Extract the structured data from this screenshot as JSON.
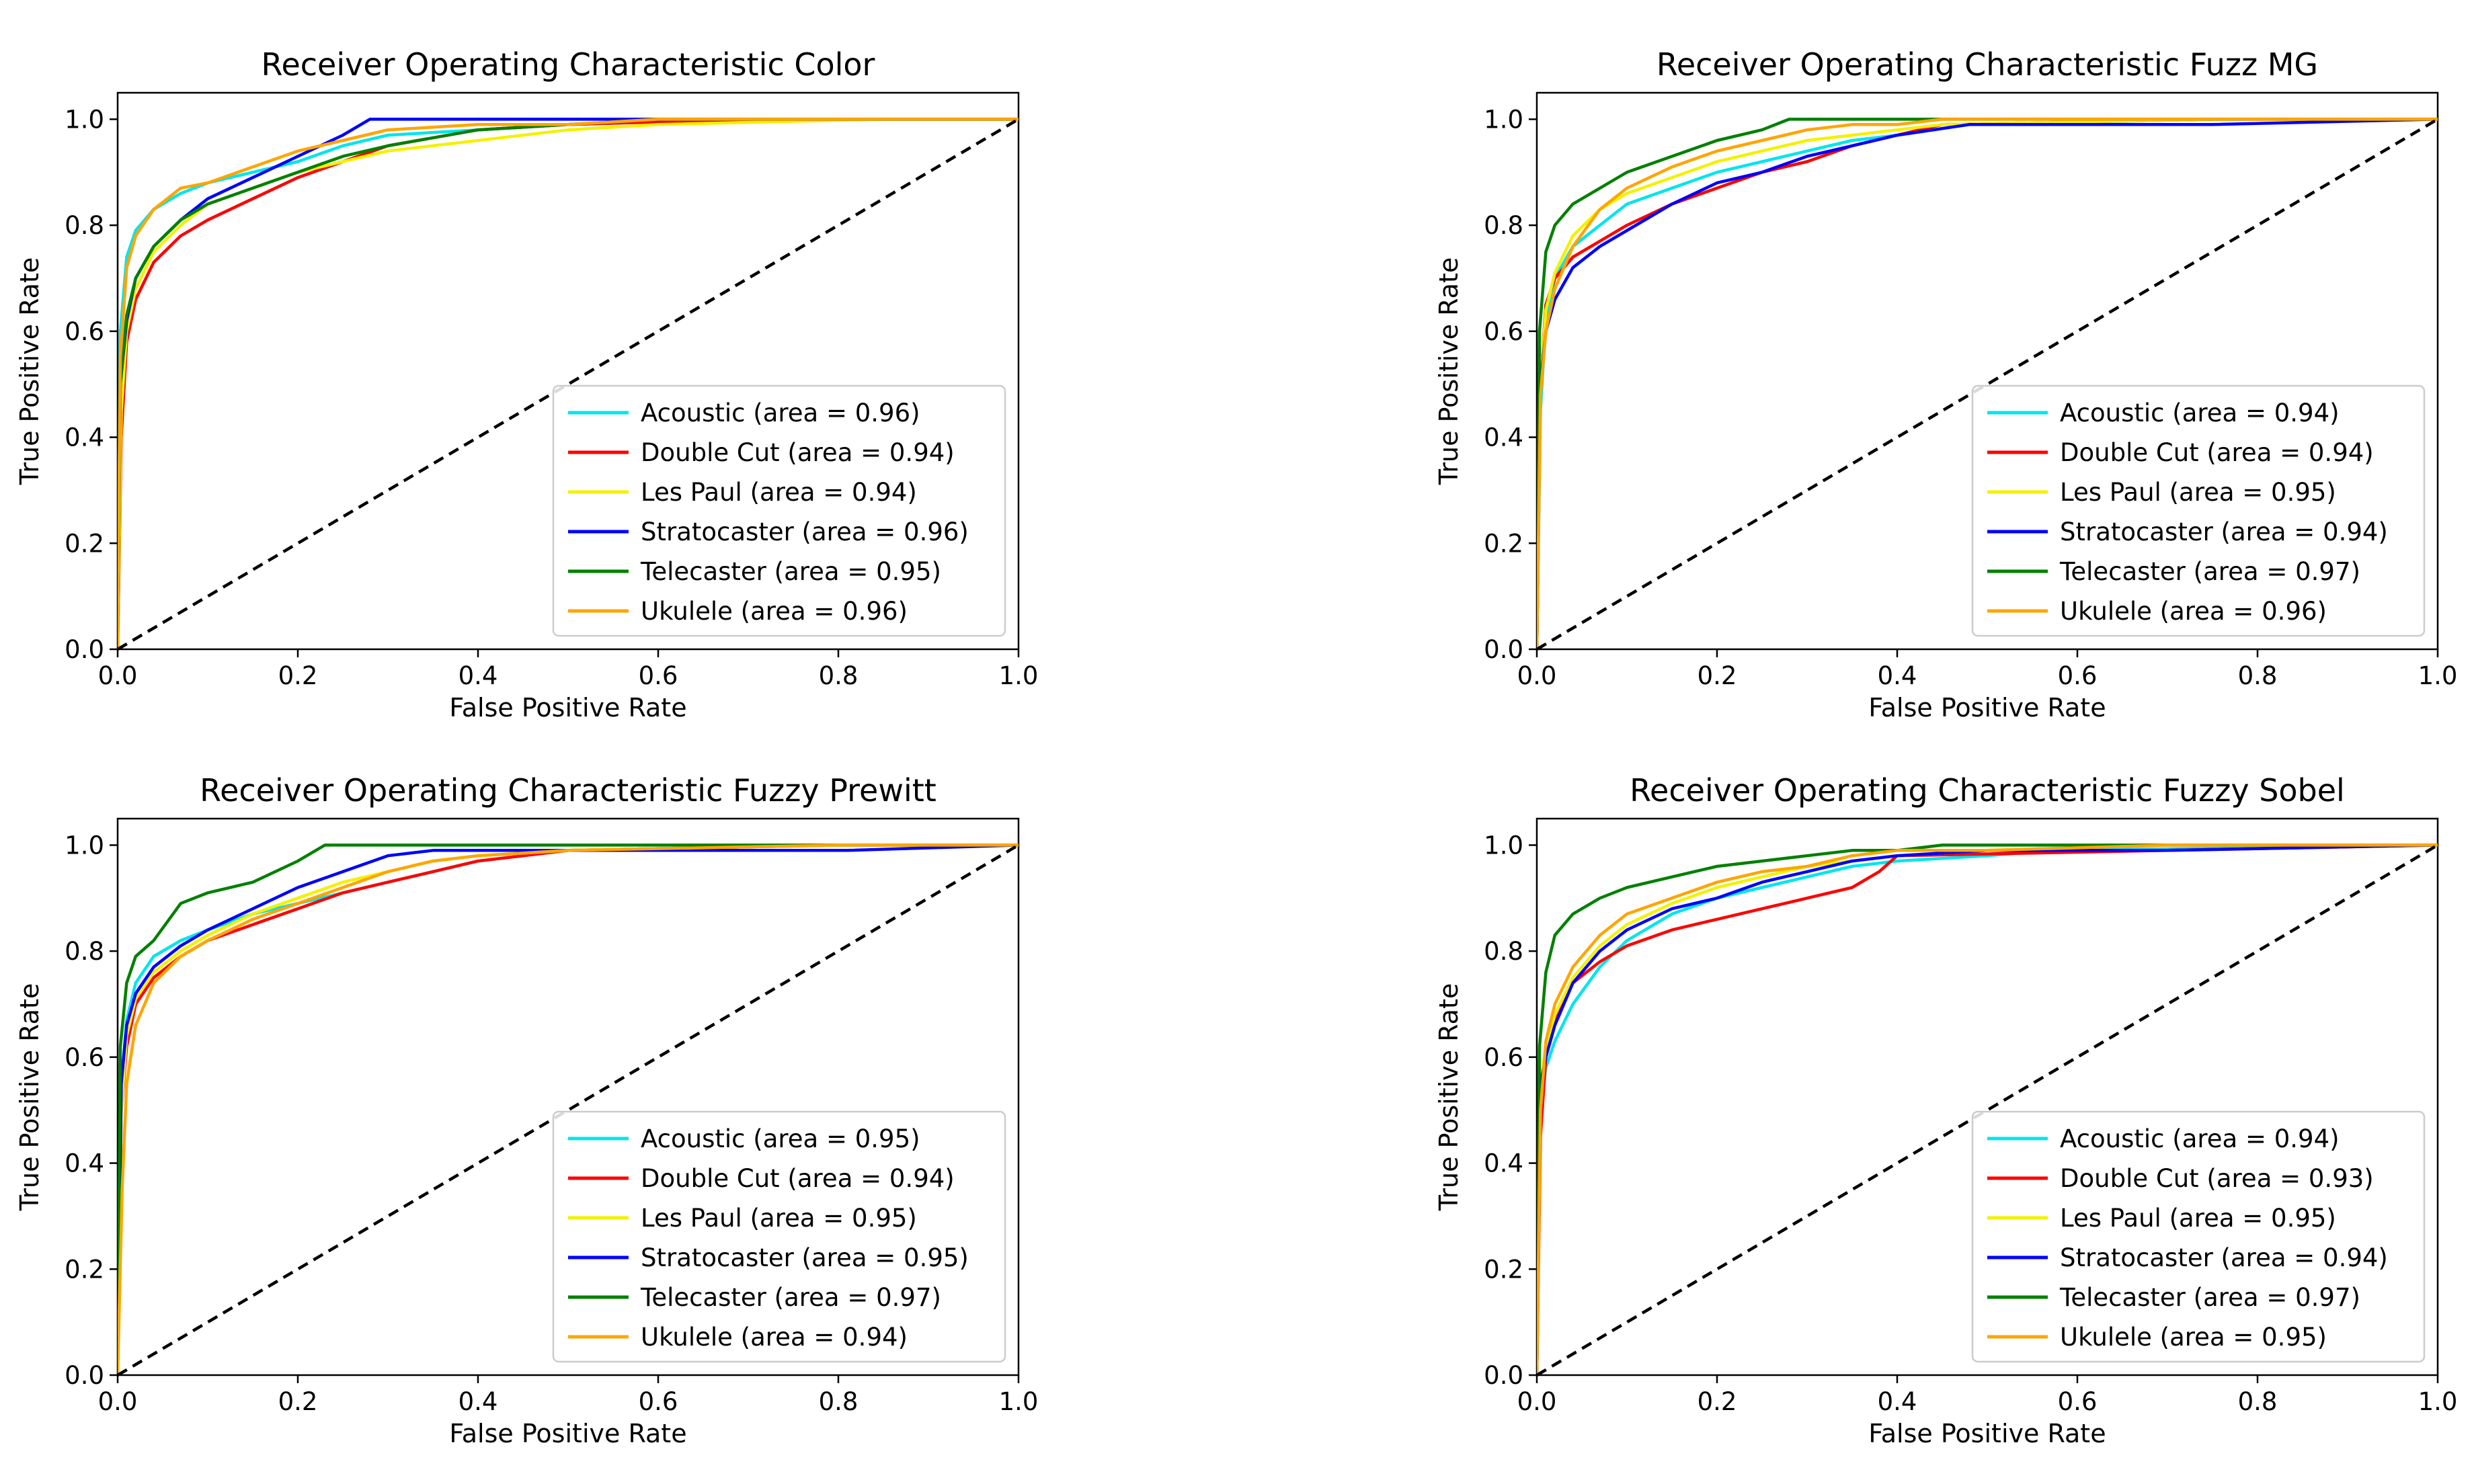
{
  "figure": {
    "description_title": "ROC curves for six guitar classes under four feature extractors"
  },
  "colors": {
    "Acoustic": "#00e5ee",
    "Double Cut": "#ff0000",
    "Les Paul": "#f2f200",
    "Stratocaster": "#0000ff",
    "Telecaster": "#008000",
    "Ukulele": "#ffa500",
    "diagonal": "#000000"
  },
  "chart_data": [
    {
      "type": "line",
      "title": "Receiver Operating Characteristic Color",
      "xlabel": "False Positive Rate",
      "ylabel": "True Positive Rate",
      "xlim": [
        0,
        1
      ],
      "ylim": [
        0,
        1.05
      ],
      "xticks": [
        "0.0",
        "0.2",
        "0.4",
        "0.6",
        "0.8",
        "1.0"
      ],
      "yticks": [
        "0.0",
        "0.2",
        "0.4",
        "0.6",
        "0.8",
        "1.0"
      ],
      "legend_position": "lower-right",
      "series": [
        {
          "name": "Acoustic",
          "label": "Acoustic (area = 0.96)",
          "x": [
            0,
            0.003,
            0.01,
            0.02,
            0.04,
            0.07,
            0.1,
            0.15,
            0.2,
            0.25,
            0.3,
            0.4,
            0.5,
            0.6,
            0.85,
            1.0
          ],
          "y": [
            0,
            0.6,
            0.74,
            0.79,
            0.83,
            0.86,
            0.88,
            0.9,
            0.92,
            0.95,
            0.97,
            0.98,
            0.99,
            0.995,
            1.0,
            1.0
          ]
        },
        {
          "name": "Double Cut",
          "label": "Double Cut (area = 0.94)",
          "x": [
            0,
            0.004,
            0.01,
            0.02,
            0.04,
            0.07,
            0.1,
            0.15,
            0.2,
            0.25,
            0.3,
            0.4,
            0.5,
            0.6,
            0.85,
            1.0
          ],
          "y": [
            0,
            0.4,
            0.58,
            0.66,
            0.73,
            0.78,
            0.81,
            0.85,
            0.89,
            0.92,
            0.95,
            0.98,
            0.99,
            0.995,
            1.0,
            1.0
          ]
        },
        {
          "name": "Les Paul",
          "label": "Les Paul (area = 0.94)",
          "x": [
            0,
            0.004,
            0.01,
            0.02,
            0.04,
            0.07,
            0.1,
            0.15,
            0.2,
            0.25,
            0.3,
            0.4,
            0.5,
            0.6,
            0.85,
            1.0
          ],
          "y": [
            0,
            0.45,
            0.6,
            0.68,
            0.75,
            0.8,
            0.84,
            0.87,
            0.9,
            0.92,
            0.94,
            0.96,
            0.98,
            0.99,
            1.0,
            1.0
          ]
        },
        {
          "name": "Stratocaster",
          "label": "Stratocaster (area = 0.96)",
          "x": [
            0,
            0.003,
            0.01,
            0.02,
            0.04,
            0.07,
            0.1,
            0.15,
            0.2,
            0.25,
            0.28,
            0.35,
            0.45,
            0.6,
            0.85,
            1.0
          ],
          "y": [
            0,
            0.5,
            0.62,
            0.7,
            0.76,
            0.81,
            0.85,
            0.89,
            0.93,
            0.97,
            1.0,
            1.0,
            1.0,
            1.0,
            1.0,
            1.0
          ]
        },
        {
          "name": "Telecaster",
          "label": "Telecaster (area = 0.95)",
          "x": [
            0,
            0.003,
            0.01,
            0.02,
            0.04,
            0.07,
            0.1,
            0.15,
            0.2,
            0.25,
            0.3,
            0.4,
            0.5,
            0.6,
            0.85,
            1.0
          ],
          "y": [
            0,
            0.5,
            0.63,
            0.7,
            0.76,
            0.81,
            0.84,
            0.87,
            0.9,
            0.93,
            0.95,
            0.98,
            0.99,
            1.0,
            1.0,
            1.0
          ]
        },
        {
          "name": "Ukulele",
          "label": "Ukulele (area = 0.96)",
          "x": [
            0,
            0.003,
            0.01,
            0.02,
            0.04,
            0.07,
            0.1,
            0.15,
            0.2,
            0.25,
            0.3,
            0.4,
            0.5,
            0.6,
            0.85,
            1.0
          ],
          "y": [
            0,
            0.55,
            0.72,
            0.78,
            0.83,
            0.87,
            0.88,
            0.91,
            0.94,
            0.96,
            0.98,
            0.99,
            0.99,
            1.0,
            1.0,
            1.0
          ]
        }
      ]
    },
    {
      "type": "line",
      "title": "Receiver Operating Characteristic Fuzz MG",
      "xlabel": "False Positive Rate",
      "ylabel": "True Positive Rate",
      "xlim": [
        0,
        1
      ],
      "ylim": [
        0,
        1.05
      ],
      "xticks": [
        "0.0",
        "0.2",
        "0.4",
        "0.6",
        "0.8",
        "1.0"
      ],
      "yticks": [
        "0.0",
        "0.2",
        "0.4",
        "0.6",
        "0.8",
        "1.0"
      ],
      "legend_position": "lower-right",
      "series": [
        {
          "name": "Acoustic",
          "label": "Acoustic (area = 0.94)",
          "x": [
            0,
            0.004,
            0.01,
            0.02,
            0.04,
            0.07,
            0.1,
            0.15,
            0.2,
            0.25,
            0.3,
            0.35,
            0.4,
            0.48,
            0.75,
            1.0
          ],
          "y": [
            0,
            0.45,
            0.62,
            0.7,
            0.76,
            0.8,
            0.84,
            0.87,
            0.9,
            0.92,
            0.94,
            0.96,
            0.97,
            0.99,
            1.0,
            1.0
          ]
        },
        {
          "name": "Double Cut",
          "label": "Double Cut (area = 0.94)",
          "x": [
            0,
            0.004,
            0.01,
            0.02,
            0.04,
            0.07,
            0.1,
            0.15,
            0.2,
            0.25,
            0.3,
            0.35,
            0.4,
            0.45,
            0.75,
            1.0
          ],
          "y": [
            0,
            0.5,
            0.65,
            0.7,
            0.74,
            0.77,
            0.8,
            0.84,
            0.87,
            0.9,
            0.92,
            0.95,
            0.97,
            0.99,
            1.0,
            1.0
          ]
        },
        {
          "name": "Les Paul",
          "label": "Les Paul (area = 0.95)",
          "x": [
            0,
            0.004,
            0.01,
            0.02,
            0.04,
            0.07,
            0.1,
            0.15,
            0.2,
            0.25,
            0.3,
            0.35,
            0.4,
            0.45,
            0.75,
            1.0
          ],
          "y": [
            0,
            0.5,
            0.64,
            0.71,
            0.78,
            0.83,
            0.86,
            0.89,
            0.92,
            0.94,
            0.96,
            0.97,
            0.98,
            0.99,
            1.0,
            1.0
          ]
        },
        {
          "name": "Stratocaster",
          "label": "Stratocaster (area = 0.94)",
          "x": [
            0,
            0.004,
            0.01,
            0.02,
            0.04,
            0.07,
            0.1,
            0.15,
            0.2,
            0.25,
            0.3,
            0.35,
            0.4,
            0.48,
            0.75,
            1.0
          ],
          "y": [
            0,
            0.5,
            0.6,
            0.66,
            0.72,
            0.76,
            0.79,
            0.84,
            0.88,
            0.9,
            0.93,
            0.95,
            0.97,
            0.99,
            0.99,
            1.0
          ]
        },
        {
          "name": "Telecaster",
          "label": "Telecaster (area = 0.97)",
          "x": [
            0,
            0.003,
            0.01,
            0.02,
            0.04,
            0.07,
            0.1,
            0.15,
            0.2,
            0.25,
            0.28,
            0.35,
            0.45,
            0.6,
            0.75,
            1.0
          ],
          "y": [
            0,
            0.6,
            0.75,
            0.8,
            0.84,
            0.87,
            0.9,
            0.93,
            0.96,
            0.98,
            1.0,
            1.0,
            1.0,
            1.0,
            1.0,
            1.0
          ]
        },
        {
          "name": "Ukulele",
          "label": "Ukulele (area = 0.96)",
          "x": [
            0,
            0.004,
            0.01,
            0.02,
            0.04,
            0.07,
            0.1,
            0.15,
            0.2,
            0.25,
            0.3,
            0.35,
            0.4,
            0.45,
            0.75,
            1.0
          ],
          "y": [
            0,
            0.48,
            0.6,
            0.68,
            0.76,
            0.83,
            0.87,
            0.91,
            0.94,
            0.96,
            0.98,
            0.99,
            0.99,
            1.0,
            1.0,
            1.0
          ]
        }
      ]
    },
    {
      "type": "line",
      "title": "Receiver Operating Characteristic Fuzzy Prewitt",
      "xlabel": "False Positive Rate",
      "ylabel": "True Positive Rate",
      "xlim": [
        0,
        1
      ],
      "ylim": [
        0,
        1.05
      ],
      "xticks": [
        "0.0",
        "0.2",
        "0.4",
        "0.6",
        "0.8",
        "1.0"
      ],
      "yticks": [
        "0.0",
        "0.2",
        "0.4",
        "0.6",
        "0.8",
        "1.0"
      ],
      "legend_position": "lower-right",
      "series": [
        {
          "name": "Acoustic",
          "label": "Acoustic (area = 0.95)",
          "x": [
            0,
            0.004,
            0.01,
            0.02,
            0.04,
            0.07,
            0.1,
            0.15,
            0.2,
            0.25,
            0.3,
            0.35,
            0.4,
            0.5,
            0.8,
            1.0
          ],
          "y": [
            0,
            0.55,
            0.67,
            0.74,
            0.79,
            0.82,
            0.84,
            0.87,
            0.89,
            0.91,
            0.93,
            0.95,
            0.97,
            0.99,
            1.0,
            1.0
          ]
        },
        {
          "name": "Double Cut",
          "label": "Double Cut (area = 0.94)",
          "x": [
            0,
            0.004,
            0.01,
            0.02,
            0.04,
            0.07,
            0.1,
            0.15,
            0.2,
            0.25,
            0.3,
            0.35,
            0.4,
            0.5,
            0.8,
            1.0
          ],
          "y": [
            0,
            0.5,
            0.62,
            0.7,
            0.75,
            0.79,
            0.82,
            0.85,
            0.88,
            0.91,
            0.93,
            0.95,
            0.97,
            0.99,
            1.0,
            1.0
          ]
        },
        {
          "name": "Les Paul",
          "label": "Les Paul (area = 0.95)",
          "x": [
            0,
            0.004,
            0.01,
            0.02,
            0.04,
            0.07,
            0.1,
            0.15,
            0.2,
            0.25,
            0.3,
            0.35,
            0.4,
            0.5,
            0.8,
            1.0
          ],
          "y": [
            0,
            0.5,
            0.64,
            0.71,
            0.76,
            0.8,
            0.83,
            0.87,
            0.9,
            0.93,
            0.95,
            0.97,
            0.98,
            0.99,
            1.0,
            1.0
          ]
        },
        {
          "name": "Stratocaster",
          "label": "Stratocaster (area = 0.95)",
          "x": [
            0,
            0.004,
            0.01,
            0.02,
            0.04,
            0.07,
            0.1,
            0.15,
            0.2,
            0.25,
            0.3,
            0.35,
            0.45,
            0.6,
            0.81,
            1.0
          ],
          "y": [
            0,
            0.55,
            0.66,
            0.72,
            0.77,
            0.81,
            0.84,
            0.88,
            0.92,
            0.95,
            0.98,
            0.99,
            0.99,
            0.99,
            0.99,
            1.0
          ]
        },
        {
          "name": "Telecaster",
          "label": "Telecaster (area = 0.97)",
          "x": [
            0,
            0.003,
            0.01,
            0.02,
            0.04,
            0.07,
            0.1,
            0.15,
            0.2,
            0.23,
            0.3,
            0.35,
            0.4,
            0.5,
            0.8,
            1.0
          ],
          "y": [
            0,
            0.62,
            0.74,
            0.79,
            0.82,
            0.89,
            0.91,
            0.93,
            0.97,
            1.0,
            1.0,
            1.0,
            1.0,
            1.0,
            1.0,
            1.0
          ]
        },
        {
          "name": "Ukulele",
          "label": "Ukulele (area = 0.94)",
          "x": [
            0,
            0.005,
            0.01,
            0.02,
            0.04,
            0.07,
            0.1,
            0.15,
            0.2,
            0.25,
            0.3,
            0.35,
            0.4,
            0.5,
            0.8,
            1.0
          ],
          "y": [
            0,
            0.35,
            0.55,
            0.66,
            0.74,
            0.79,
            0.82,
            0.86,
            0.89,
            0.92,
            0.95,
            0.97,
            0.98,
            0.99,
            1.0,
            1.0
          ]
        }
      ]
    },
    {
      "type": "line",
      "title": "Receiver Operating Characteristic Fuzzy Sobel",
      "xlabel": "False Positive Rate",
      "ylabel": "True Positive Rate",
      "xlim": [
        0,
        1
      ],
      "ylim": [
        0,
        1.05
      ],
      "xticks": [
        "0.0",
        "0.2",
        "0.4",
        "0.6",
        "0.8",
        "1.0"
      ],
      "yticks": [
        "0.0",
        "0.2",
        "0.4",
        "0.6",
        "0.8",
        "1.0"
      ],
      "legend_position": "lower-right",
      "series": [
        {
          "name": "Acoustic",
          "label": "Acoustic (area = 0.94)",
          "x": [
            0,
            0.004,
            0.01,
            0.02,
            0.04,
            0.07,
            0.1,
            0.15,
            0.2,
            0.25,
            0.3,
            0.35,
            0.4,
            0.5,
            0.57,
            1.0
          ],
          "y": [
            0,
            0.5,
            0.58,
            0.63,
            0.7,
            0.77,
            0.82,
            0.87,
            0.9,
            0.92,
            0.94,
            0.96,
            0.97,
            0.98,
            0.99,
            1.0
          ]
        },
        {
          "name": "Double Cut",
          "label": "Double Cut (area = 0.93)",
          "x": [
            0,
            0.004,
            0.01,
            0.02,
            0.04,
            0.07,
            0.1,
            0.15,
            0.2,
            0.25,
            0.3,
            0.35,
            0.38,
            0.4,
            0.7,
            1.0
          ],
          "y": [
            0,
            0.45,
            0.6,
            0.67,
            0.74,
            0.78,
            0.81,
            0.84,
            0.86,
            0.88,
            0.9,
            0.92,
            0.95,
            0.98,
            0.99,
            1.0
          ]
        },
        {
          "name": "Les Paul",
          "label": "Les Paul (area = 0.95)",
          "x": [
            0,
            0.004,
            0.01,
            0.02,
            0.04,
            0.07,
            0.1,
            0.15,
            0.2,
            0.25,
            0.3,
            0.35,
            0.4,
            0.5,
            0.7,
            1.0
          ],
          "y": [
            0,
            0.55,
            0.62,
            0.68,
            0.75,
            0.81,
            0.85,
            0.89,
            0.92,
            0.94,
            0.96,
            0.97,
            0.98,
            0.99,
            1.0,
            1.0
          ]
        },
        {
          "name": "Stratocaster",
          "label": "Stratocaster (area = 0.94)",
          "x": [
            0,
            0.004,
            0.01,
            0.02,
            0.04,
            0.07,
            0.1,
            0.15,
            0.2,
            0.25,
            0.3,
            0.35,
            0.4,
            0.5,
            0.7,
            1.0
          ],
          "y": [
            0,
            0.55,
            0.6,
            0.66,
            0.74,
            0.8,
            0.84,
            0.88,
            0.9,
            0.93,
            0.95,
            0.97,
            0.98,
            0.99,
            0.99,
            1.0
          ]
        },
        {
          "name": "Telecaster",
          "label": "Telecaster (area = 0.97)",
          "x": [
            0,
            0.003,
            0.01,
            0.02,
            0.04,
            0.07,
            0.1,
            0.15,
            0.2,
            0.25,
            0.3,
            0.35,
            0.4,
            0.45,
            0.54,
            1.0
          ],
          "y": [
            0,
            0.62,
            0.76,
            0.83,
            0.87,
            0.9,
            0.92,
            0.94,
            0.96,
            0.97,
            0.98,
            0.99,
            0.99,
            1.0,
            1.0,
            1.0
          ]
        },
        {
          "name": "Ukulele",
          "label": "Ukulele (area = 0.95)",
          "x": [
            0,
            0.004,
            0.01,
            0.02,
            0.04,
            0.07,
            0.1,
            0.15,
            0.2,
            0.25,
            0.3,
            0.35,
            0.4,
            0.5,
            0.7,
            1.0
          ],
          "y": [
            0,
            0.5,
            0.63,
            0.7,
            0.77,
            0.83,
            0.87,
            0.9,
            0.93,
            0.95,
            0.96,
            0.98,
            0.99,
            0.99,
            1.0,
            1.0
          ]
        }
      ]
    }
  ]
}
